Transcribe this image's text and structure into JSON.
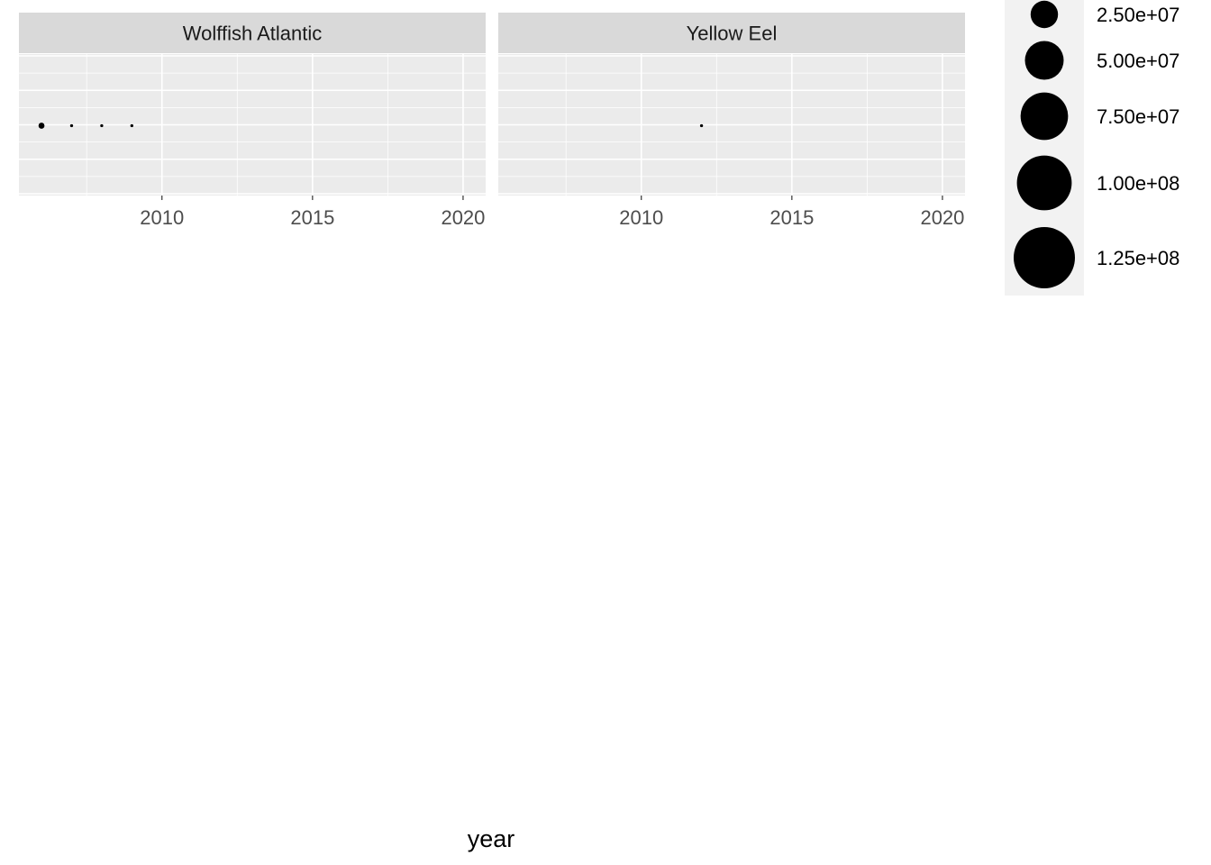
{
  "chart_data": {
    "type": "scatter",
    "xlabel": "year",
    "x_ticks": [
      2010,
      2015,
      2020
    ],
    "xlim": [
      2005.25,
      2020.75
    ],
    "ylim": [
      0,
      1
    ],
    "grid": true,
    "legend_position": "right",
    "size_legend": {
      "title": "",
      "breaks": [
        25000000,
        50000000,
        75000000,
        100000000,
        125000000
      ],
      "labels": [
        "2.50e+07",
        "5.00e+07",
        "7.50e+07",
        "1.00e+08",
        "1.25e+08"
      ]
    },
    "panels": [
      {
        "name": "Wolffish Atlantic",
        "points": [
          {
            "x": 2006,
            "y": 0.5,
            "size": 1200000
          },
          {
            "x": 2007,
            "y": 0.5,
            "size": 300000
          },
          {
            "x": 2008,
            "y": 0.5,
            "size": 300000
          },
          {
            "x": 2009,
            "y": 0.5,
            "size": 300000
          }
        ]
      },
      {
        "name": "Yellow Eel",
        "points": [
          {
            "x": 2012,
            "y": 0.5,
            "size": 300000
          }
        ]
      }
    ]
  }
}
